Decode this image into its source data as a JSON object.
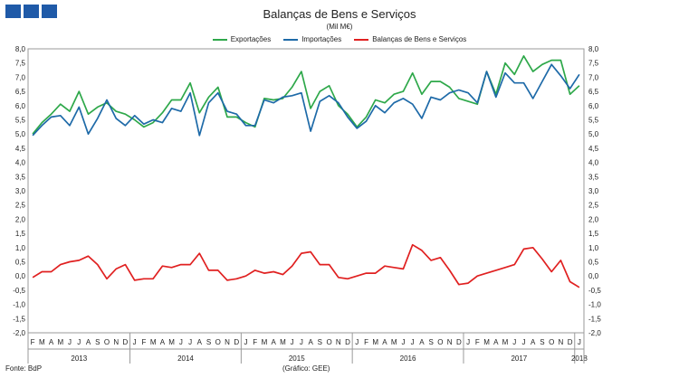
{
  "chart_data": {
    "type": "line",
    "title": "Balanças de Bens e Serviços",
    "subtitle": "(Mil M€)",
    "source": "Fonte: BdP",
    "credit": "(Gráfico: GEE)",
    "ylim": [
      -2.0,
      8.0
    ],
    "yticks": [
      "8,0",
      "7,5",
      "7,0",
      "6,5",
      "6,0",
      "5,5",
      "5,0",
      "4,5",
      "4,0",
      "3,5",
      "3,0",
      "2,5",
      "2,0",
      "1,5",
      "1,0",
      "0,5",
      "0,0",
      "-0,5",
      "-1,0",
      "-1,5",
      "-2,0"
    ],
    "months": [
      "F",
      "M",
      "A",
      "M",
      "J",
      "J",
      "A",
      "S",
      "O",
      "N",
      "D",
      "J",
      "F",
      "M",
      "A",
      "M",
      "J",
      "J",
      "A",
      "S",
      "O",
      "N",
      "D",
      "J",
      "F",
      "M",
      "A",
      "M",
      "J",
      "J",
      "A",
      "S",
      "O",
      "N",
      "D",
      "J",
      "F",
      "M",
      "A",
      "M",
      "J",
      "J",
      "A",
      "S",
      "O",
      "N",
      "D",
      "J",
      "F",
      "M",
      "A",
      "M",
      "J",
      "J",
      "A",
      "S",
      "O",
      "N",
      "D",
      "J"
    ],
    "years": [
      {
        "label": "2013",
        "start": 0,
        "end": 11
      },
      {
        "label": "2014",
        "start": 11,
        "end": 23
      },
      {
        "label": "2015",
        "start": 23,
        "end": 35
      },
      {
        "label": "2016",
        "start": 35,
        "end": 47
      },
      {
        "label": "2017",
        "start": 47,
        "end": 59
      },
      {
        "label": "2018",
        "start": 59,
        "end": 60
      }
    ],
    "series": [
      {
        "name": "Exportações",
        "color": "#2ea84a",
        "values": [
          5.0,
          5.4,
          5.7,
          6.05,
          5.8,
          6.5,
          5.7,
          5.95,
          6.1,
          5.8,
          5.7,
          5.5,
          5.25,
          5.4,
          5.75,
          6.2,
          6.2,
          6.8,
          5.75,
          6.3,
          6.65,
          5.6,
          5.6,
          5.4,
          5.25,
          6.25,
          6.2,
          6.25,
          6.65,
          7.2,
          5.9,
          6.5,
          6.7,
          6.0,
          5.7,
          5.25,
          5.6,
          6.2,
          6.1,
          6.4,
          6.5,
          7.15,
          6.4,
          6.85,
          6.85,
          6.65,
          6.25,
          6.15,
          6.05,
          7.2,
          6.4,
          7.5,
          7.1,
          7.75,
          7.2,
          7.45,
          7.6,
          7.6,
          6.4,
          6.7
        ]
      },
      {
        "name": "Importações",
        "color": "#1e6aa8",
        "values": [
          4.95,
          5.3,
          5.6,
          5.65,
          5.3,
          5.95,
          5.0,
          5.55,
          6.2,
          5.55,
          5.3,
          5.65,
          5.35,
          5.5,
          5.4,
          5.9,
          5.8,
          6.45,
          4.95,
          6.1,
          6.45,
          5.8,
          5.7,
          5.3,
          5.3,
          6.2,
          6.1,
          6.3,
          6.35,
          6.45,
          5.1,
          6.15,
          6.35,
          6.1,
          5.6,
          5.2,
          5.45,
          6.0,
          5.75,
          6.1,
          6.25,
          6.05,
          5.55,
          6.3,
          6.2,
          6.45,
          6.55,
          6.45,
          6.1,
          7.2,
          6.3,
          7.15,
          6.8,
          6.8,
          6.25,
          6.85,
          7.45,
          7.05,
          6.6,
          7.1
        ]
      },
      {
        "name": "Balanças de Bens e Serviços",
        "color": "#e02020",
        "values": [
          -0.05,
          0.15,
          0.15,
          0.4,
          0.5,
          0.55,
          0.7,
          0.4,
          -0.1,
          0.25,
          0.4,
          -0.15,
          -0.1,
          -0.1,
          0.35,
          0.3,
          0.4,
          0.4,
          0.8,
          0.2,
          0.2,
          -0.15,
          -0.1,
          0.0,
          0.2,
          0.1,
          0.15,
          0.05,
          0.35,
          0.8,
          0.85,
          0.4,
          0.4,
          -0.05,
          -0.1,
          0.0,
          0.1,
          0.1,
          0.35,
          0.3,
          0.25,
          1.1,
          0.9,
          0.55,
          0.65,
          0.2,
          -0.3,
          -0.25,
          0.0,
          0.1,
          0.2,
          0.3,
          0.4,
          0.95,
          1.0,
          0.6,
          0.15,
          0.55,
          -0.2,
          -0.4
        ]
      }
    ]
  }
}
